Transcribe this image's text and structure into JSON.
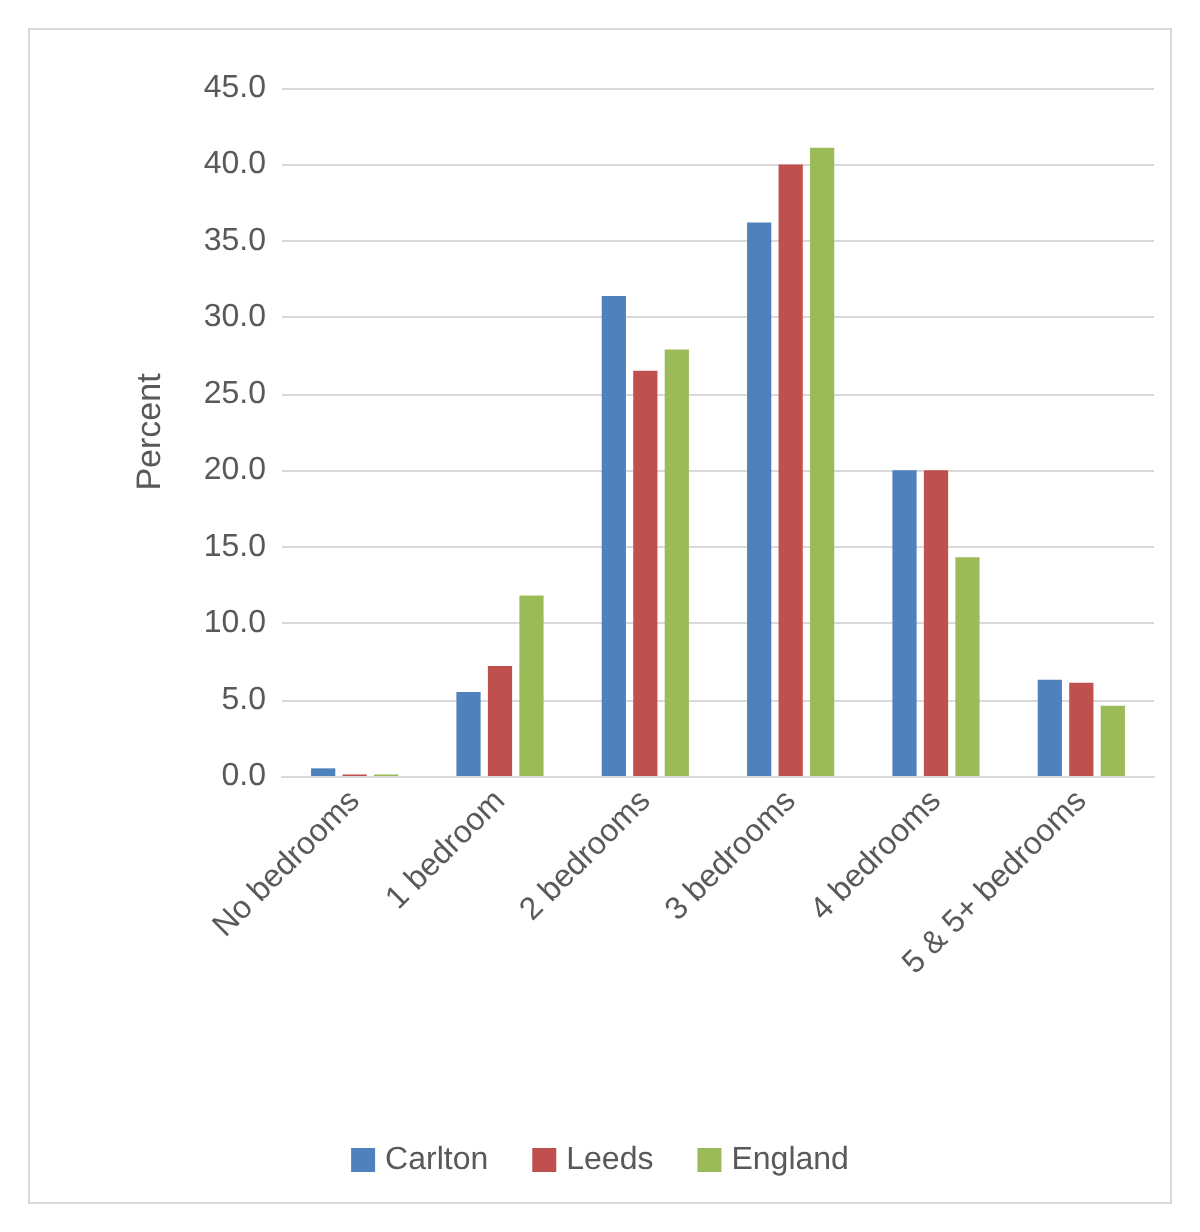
{
  "chart_data": {
    "type": "bar",
    "ylabel": "Percent",
    "categories": [
      "No bedrooms",
      "1 bedroom",
      "2 bedrooms",
      "3 bedrooms",
      "4 bedrooms",
      "5 & 5+ bedrooms"
    ],
    "series": [
      {
        "name": "Carlton",
        "color": "#4f81bd",
        "values": [
          0.5,
          5.5,
          31.4,
          36.2,
          20.0,
          6.3
        ]
      },
      {
        "name": "Leeds",
        "color": "#c0504d",
        "values": [
          0.1,
          7.2,
          26.5,
          40.0,
          20.0,
          6.1
        ]
      },
      {
        "name": "England",
        "color": "#9bbb59",
        "values": [
          0.1,
          11.8,
          27.9,
          41.1,
          14.3,
          4.6
        ]
      }
    ],
    "ylim": [
      0,
      45
    ],
    "yticks": [
      {
        "value": 0,
        "label": "0.0"
      },
      {
        "value": 5,
        "label": "5.0"
      },
      {
        "value": 10,
        "label": "10.0"
      },
      {
        "value": 15,
        "label": "15.0"
      },
      {
        "value": 20,
        "label": "20.0"
      },
      {
        "value": 25,
        "label": "25.0"
      },
      {
        "value": 30,
        "label": "30.0"
      },
      {
        "value": 35,
        "label": "35.0"
      },
      {
        "value": 40,
        "label": "40.0"
      },
      {
        "value": 45,
        "label": "45.0"
      }
    ],
    "grid": "y",
    "legend": "bottom"
  }
}
